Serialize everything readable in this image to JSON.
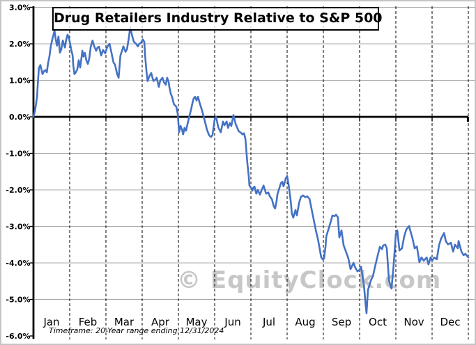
{
  "colors": {
    "line": "#4472c4",
    "grid": "#a9a9a9",
    "axis": "#000000",
    "dashed_gridline": "#000000",
    "watermark": "#c7c7c7",
    "background": "#ffffff",
    "frame_border": "#c4c4c4"
  },
  "watermark_text": "© EquityClock.com",
  "chart_data": {
    "type": "line",
    "title": "Drug Retailers Industry Relative to S&P 500",
    "footnote": "Timeframe: 20-Year range ending 12/31/2024",
    "xlabel": "",
    "ylabel": "",
    "legend": "none",
    "grid": "horizontal solid gray, vertical dashed black per month",
    "x_categories": [
      "Jan",
      "Feb",
      "Mar",
      "Apr",
      "May",
      "Jun",
      "Jul",
      "Aug",
      "Sep",
      "Oct",
      "Nov",
      "Dec"
    ],
    "xlim_months": [
      0,
      12
    ],
    "ylim": [
      -6.0,
      3.0
    ],
    "y_axis": {
      "labels": [
        "3.0%",
        "2.0%",
        "1.0%",
        "0.0%",
        "-1.0%",
        "-2.0%",
        "-3.0%",
        "-4.0%",
        "-5.0%",
        "-6.0%"
      ],
      "values": [
        3,
        2,
        1,
        0,
        -1,
        -2,
        -3,
        -4,
        -5,
        -6
      ]
    },
    "series": [
      {
        "color": "#4472c4",
        "points": [
          [
            0.0,
            0.0
          ],
          [
            0.04,
            0.15
          ],
          [
            0.08,
            0.42
          ],
          [
            0.1,
            0.55
          ],
          [
            0.12,
            0.9
          ],
          [
            0.15,
            1.33
          ],
          [
            0.19,
            1.42
          ],
          [
            0.23,
            1.25
          ],
          [
            0.25,
            1.17
          ],
          [
            0.29,
            1.25
          ],
          [
            0.33,
            1.28
          ],
          [
            0.37,
            1.22
          ],
          [
            0.4,
            1.45
          ],
          [
            0.44,
            1.65
          ],
          [
            0.48,
            1.95
          ],
          [
            0.54,
            2.2
          ],
          [
            0.58,
            2.36
          ],
          [
            0.62,
            2.1
          ],
          [
            0.65,
            1.95
          ],
          [
            0.69,
            2.2
          ],
          [
            0.73,
            1.76
          ],
          [
            0.77,
            1.85
          ],
          [
            0.81,
            2.09
          ],
          [
            0.87,
            1.9
          ],
          [
            0.9,
            2.1
          ],
          [
            0.94,
            2.25
          ],
          [
            0.98,
            2.15
          ],
          [
            1.0,
            2.06
          ],
          [
            1.04,
            1.85
          ],
          [
            1.08,
            1.68
          ],
          [
            1.1,
            1.4
          ],
          [
            1.13,
            1.17
          ],
          [
            1.17,
            1.22
          ],
          [
            1.21,
            1.3
          ],
          [
            1.25,
            1.55
          ],
          [
            1.29,
            1.35
          ],
          [
            1.35,
            1.81
          ],
          [
            1.38,
            1.65
          ],
          [
            1.42,
            1.75
          ],
          [
            1.46,
            1.55
          ],
          [
            1.5,
            1.45
          ],
          [
            1.54,
            1.6
          ],
          [
            1.58,
            1.92
          ],
          [
            1.63,
            2.09
          ],
          [
            1.67,
            1.95
          ],
          [
            1.73,
            1.81
          ],
          [
            1.77,
            1.9
          ],
          [
            1.81,
            1.92
          ],
          [
            1.87,
            1.68
          ],
          [
            1.92,
            1.83
          ],
          [
            1.98,
            1.74
          ],
          [
            2.02,
            1.87
          ],
          [
            2.06,
            1.95
          ],
          [
            2.1,
            2.0
          ],
          [
            2.15,
            1.77
          ],
          [
            2.21,
            1.49
          ],
          [
            2.25,
            1.43
          ],
          [
            2.31,
            1.17
          ],
          [
            2.35,
            1.07
          ],
          [
            2.4,
            1.68
          ],
          [
            2.44,
            1.8
          ],
          [
            2.48,
            1.93
          ],
          [
            2.54,
            1.78
          ],
          [
            2.58,
            1.85
          ],
          [
            2.63,
            2.15
          ],
          [
            2.67,
            2.45
          ],
          [
            2.73,
            2.19
          ],
          [
            2.77,
            2.06
          ],
          [
            2.83,
            2.0
          ],
          [
            2.88,
            1.93
          ],
          [
            2.92,
            2.0
          ],
          [
            2.96,
            2.02
          ],
          [
            3.02,
            2.12
          ],
          [
            3.06,
            2.05
          ],
          [
            3.08,
            1.68
          ],
          [
            3.12,
            1.24
          ],
          [
            3.15,
            0.98
          ],
          [
            3.21,
            1.14
          ],
          [
            3.25,
            1.2
          ],
          [
            3.31,
            0.98
          ],
          [
            3.37,
            1.02
          ],
          [
            3.4,
            1.07
          ],
          [
            3.46,
            0.82
          ],
          [
            3.5,
            1.0
          ],
          [
            3.56,
            1.07
          ],
          [
            3.6,
            0.95
          ],
          [
            3.65,
            0.88
          ],
          [
            3.69,
            1.07
          ],
          [
            3.73,
            0.95
          ],
          [
            3.75,
            0.82
          ],
          [
            3.79,
            0.63
          ],
          [
            3.83,
            0.53
          ],
          [
            3.85,
            0.44
          ],
          [
            3.88,
            0.34
          ],
          [
            3.94,
            0.28
          ],
          [
            3.98,
            0.09
          ],
          [
            4.02,
            -0.42
          ],
          [
            4.06,
            -0.25
          ],
          [
            4.1,
            -0.35
          ],
          [
            4.13,
            -0.48
          ],
          [
            4.17,
            -0.3
          ],
          [
            4.21,
            -0.38
          ],
          [
            4.27,
            -0.12
          ],
          [
            4.31,
            0.05
          ],
          [
            4.35,
            0.2
          ],
          [
            4.38,
            0.35
          ],
          [
            4.42,
            0.5
          ],
          [
            4.46,
            0.55
          ],
          [
            4.5,
            0.45
          ],
          [
            4.54,
            0.55
          ],
          [
            4.58,
            0.4
          ],
          [
            4.6,
            0.34
          ],
          [
            4.65,
            0.18
          ],
          [
            4.71,
            -0.04
          ],
          [
            4.79,
            -0.36
          ],
          [
            4.85,
            -0.51
          ],
          [
            4.9,
            -0.55
          ],
          [
            4.94,
            -0.5
          ],
          [
            5.0,
            -0.07
          ],
          [
            5.04,
            0.0
          ],
          [
            5.1,
            -0.29
          ],
          [
            5.17,
            -0.42
          ],
          [
            5.23,
            -0.13
          ],
          [
            5.27,
            -0.23
          ],
          [
            5.33,
            -0.13
          ],
          [
            5.37,
            -0.3
          ],
          [
            5.42,
            -0.17
          ],
          [
            5.46,
            -0.25
          ],
          [
            5.52,
            0.05
          ],
          [
            5.58,
            -0.2
          ],
          [
            5.62,
            -0.29
          ],
          [
            5.67,
            -0.4
          ],
          [
            5.71,
            -0.42
          ],
          [
            5.77,
            -0.48
          ],
          [
            5.81,
            -0.45
          ],
          [
            5.85,
            -0.61
          ],
          [
            5.87,
            -0.86
          ],
          [
            5.9,
            -1.24
          ],
          [
            5.94,
            -1.62
          ],
          [
            5.96,
            -1.88
          ],
          [
            6.0,
            -1.94
          ],
          [
            6.04,
            -2.02
          ],
          [
            6.06,
            -1.95
          ],
          [
            6.1,
            -1.91
          ],
          [
            6.13,
            -2.04
          ],
          [
            6.15,
            -2.1
          ],
          [
            6.19,
            -2.0
          ],
          [
            6.25,
            -2.13
          ],
          [
            6.29,
            -2.02
          ],
          [
            6.35,
            -1.88
          ],
          [
            6.38,
            -1.98
          ],
          [
            6.42,
            -2.1
          ],
          [
            6.48,
            -2.07
          ],
          [
            6.52,
            -2.17
          ],
          [
            6.58,
            -2.26
          ],
          [
            6.63,
            -2.45
          ],
          [
            6.67,
            -2.51
          ],
          [
            6.71,
            -2.3
          ],
          [
            6.73,
            -2.13
          ],
          [
            6.77,
            -2.0
          ],
          [
            6.83,
            -1.81
          ],
          [
            6.87,
            -1.78
          ],
          [
            6.9,
            -1.9
          ],
          [
            6.92,
            -1.85
          ],
          [
            6.96,
            -1.69
          ],
          [
            7.0,
            -1.62
          ],
          [
            7.04,
            -1.85
          ],
          [
            7.1,
            -2.32
          ],
          [
            7.13,
            -2.65
          ],
          [
            7.17,
            -2.76
          ],
          [
            7.23,
            -2.55
          ],
          [
            7.27,
            -2.7
          ],
          [
            7.33,
            -2.35
          ],
          [
            7.38,
            -2.19
          ],
          [
            7.44,
            -2.15
          ],
          [
            7.5,
            -2.2
          ],
          [
            7.56,
            -2.18
          ],
          [
            7.62,
            -2.25
          ],
          [
            7.67,
            -2.5
          ],
          [
            7.73,
            -2.8
          ],
          [
            7.79,
            -3.1
          ],
          [
            7.85,
            -3.35
          ],
          [
            7.9,
            -3.62
          ],
          [
            7.94,
            -3.85
          ],
          [
            7.98,
            -3.9
          ],
          [
            8.02,
            -3.88
          ],
          [
            8.06,
            -3.55
          ],
          [
            8.08,
            -3.27
          ],
          [
            8.15,
            -3.05
          ],
          [
            8.21,
            -2.85
          ],
          [
            8.25,
            -2.7
          ],
          [
            8.31,
            -2.72
          ],
          [
            8.35,
            -2.68
          ],
          [
            8.4,
            -2.75
          ],
          [
            8.44,
            -3.3
          ],
          [
            8.5,
            -3.11
          ],
          [
            8.56,
            -3.52
          ],
          [
            8.63,
            -3.71
          ],
          [
            8.69,
            -3.88
          ],
          [
            8.75,
            -4.17
          ],
          [
            8.83,
            -4.0
          ],
          [
            8.88,
            -4.13
          ],
          [
            8.94,
            -4.23
          ],
          [
            9.0,
            -4.19
          ],
          [
            9.04,
            -4.1
          ],
          [
            9.12,
            -4.61
          ],
          [
            9.17,
            -5.18
          ],
          [
            9.19,
            -5.38
          ],
          [
            9.23,
            -4.74
          ],
          [
            9.31,
            -4.48
          ],
          [
            9.37,
            -4.36
          ],
          [
            9.42,
            -4.13
          ],
          [
            9.5,
            -3.79
          ],
          [
            9.56,
            -3.56
          ],
          [
            9.62,
            -3.62
          ],
          [
            9.65,
            -3.52
          ],
          [
            9.71,
            -3.5
          ],
          [
            9.75,
            -3.6
          ],
          [
            9.81,
            -4.48
          ],
          [
            9.85,
            -4.61
          ],
          [
            9.88,
            -4.7
          ],
          [
            9.94,
            -4.04
          ],
          [
            10.0,
            -3.21
          ],
          [
            10.04,
            -3.11
          ],
          [
            10.1,
            -3.66
          ],
          [
            10.17,
            -3.6
          ],
          [
            10.23,
            -3.27
          ],
          [
            10.29,
            -3.08
          ],
          [
            10.37,
            -2.99
          ],
          [
            10.38,
            -3.05
          ],
          [
            10.46,
            -3.33
          ],
          [
            10.52,
            -3.6
          ],
          [
            10.58,
            -3.55
          ],
          [
            10.65,
            -3.98
          ],
          [
            10.71,
            -3.85
          ],
          [
            10.77,
            -3.94
          ],
          [
            10.85,
            -3.85
          ],
          [
            10.9,
            -4.04
          ],
          [
            10.96,
            -3.85
          ],
          [
            11.0,
            -3.94
          ],
          [
            11.06,
            -3.85
          ],
          [
            11.13,
            -3.9
          ],
          [
            11.19,
            -3.52
          ],
          [
            11.25,
            -3.33
          ],
          [
            11.33,
            -3.18
          ],
          [
            11.38,
            -3.41
          ],
          [
            11.44,
            -3.49
          ],
          [
            11.52,
            -3.45
          ],
          [
            11.58,
            -3.69
          ],
          [
            11.63,
            -3.5
          ],
          [
            11.71,
            -3.6
          ],
          [
            11.73,
            -3.4
          ],
          [
            11.81,
            -3.69
          ],
          [
            11.87,
            -3.79
          ],
          [
            11.92,
            -3.75
          ],
          [
            12.0,
            -3.85
          ]
        ]
      }
    ]
  }
}
